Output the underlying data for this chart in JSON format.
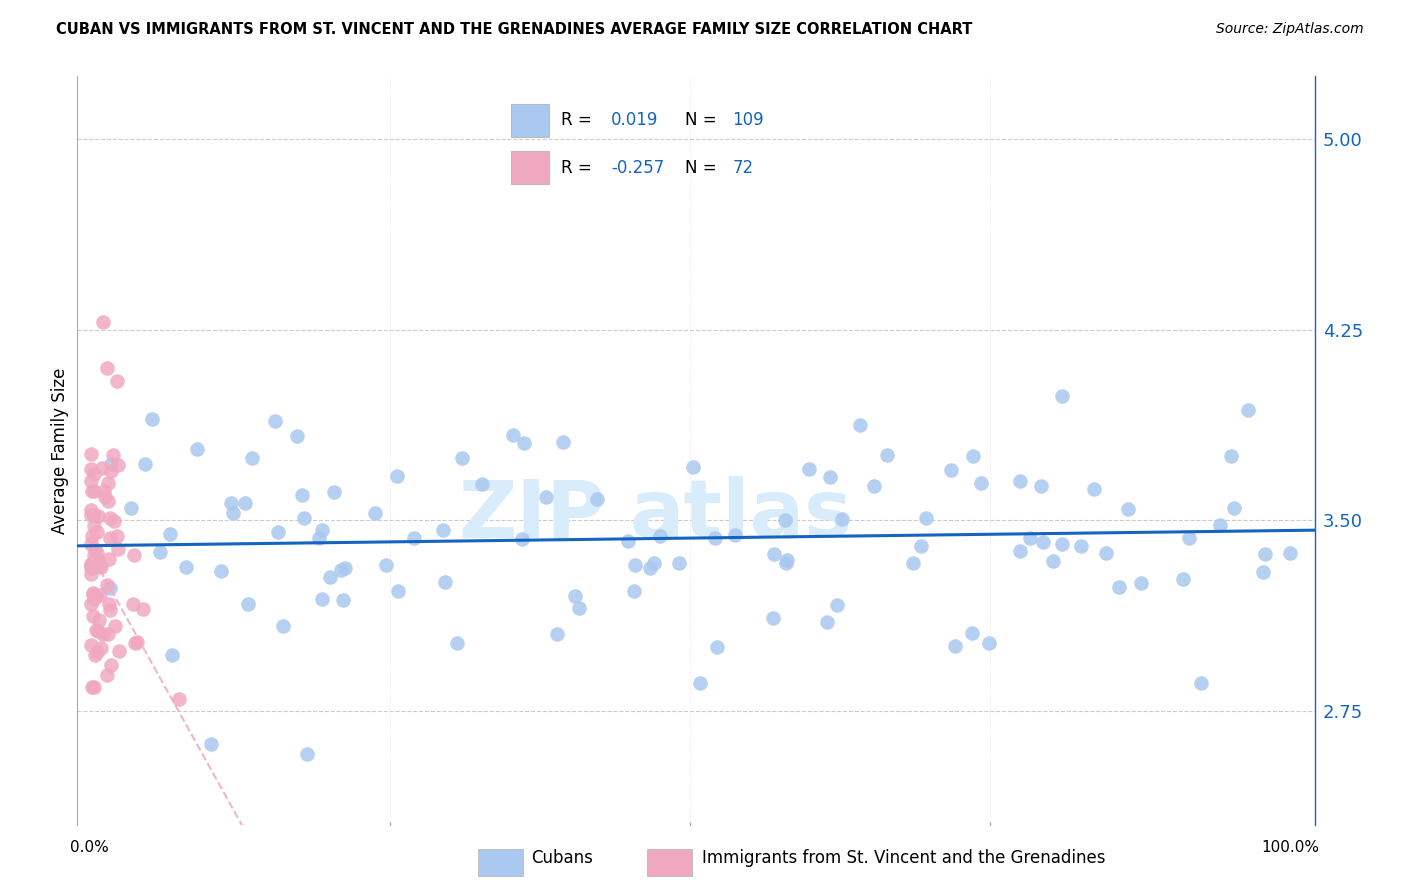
{
  "title": "CUBAN VS IMMIGRANTS FROM ST. VINCENT AND THE GRENADINES AVERAGE FAMILY SIZE CORRELATION CHART",
  "source": "Source: ZipAtlas.com",
  "ylabel": "Average Family Size",
  "yticks": [
    2.75,
    3.5,
    4.25,
    5.0
  ],
  "ylim": [
    2.3,
    5.25
  ],
  "xlim": [
    -0.01,
    1.02
  ],
  "legend_label1": "Cubans",
  "legend_label2": "Immigrants from St. Vincent and the Grenadines",
  "color_blue": "#aac8f0",
  "color_pink": "#f0a8c0",
  "line_color_blue": "#1565c0",
  "line_color_axis": "#1565c0",
  "watermark_color": "#d8ecfb"
}
